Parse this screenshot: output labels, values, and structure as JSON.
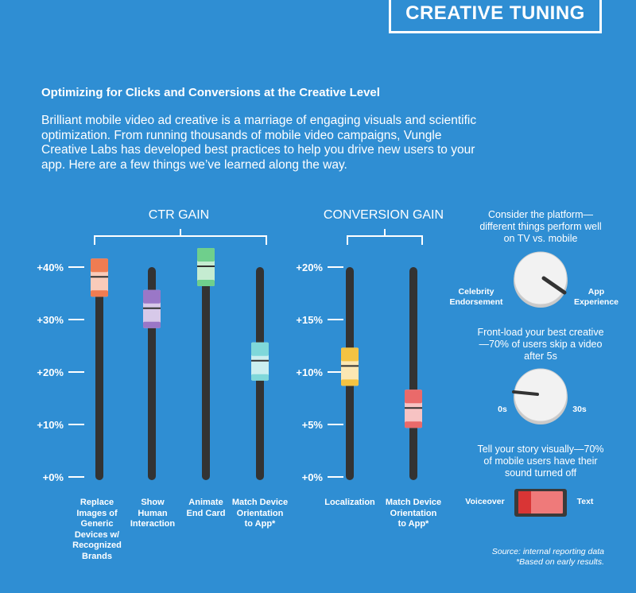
{
  "header": {
    "title": "CREATIVE TUNING"
  },
  "subtitle": "Optimizing for Clicks and Conversions at the Creative Level",
  "intro": "Brilliant mobile video ad creative is a marriage of engaging visuals and scientific optimization. From running thousands of mobile video campaigns, Vungle Creative Labs has developed best practices to help you drive new users to your app. Here are a few things we’ve learned along the way.",
  "chart_data": [
    {
      "type": "bar",
      "title": "CTR GAIN",
      "ylim": [
        0,
        40
      ],
      "tick_labels": [
        "+0%",
        "+10%",
        "+20%",
        "+30%",
        "+40%"
      ],
      "categories": [
        "Replace Images of Generic Devices w/ Recognized Brands",
        "Show Human Interaction",
        "Animate End Card",
        "Match Device Orientation to App*"
      ],
      "category_lines": [
        [
          "Replace",
          "Images of",
          "Generic",
          "Devices w/",
          "Recognized",
          "Brands"
        ],
        [
          "Show",
          "Human",
          "Interaction"
        ],
        [
          "Animate",
          "End Card"
        ],
        [
          "Match Device",
          "Orientation",
          "to App*"
        ]
      ],
      "values": [
        38,
        32,
        40,
        22
      ],
      "colors": [
        "#ef7c52",
        "#9a77c7",
        "#6fcf8c",
        "#7fd8da"
      ]
    },
    {
      "type": "bar",
      "title": "CONVERSION GAIN",
      "ylim": [
        0,
        20
      ],
      "tick_labels": [
        "+0%",
        "+5%",
        "+10%",
        "+15%",
        "+20%"
      ],
      "categories": [
        "Localization",
        "Match Device Orientation to App*"
      ],
      "category_lines": [
        [
          "Localization"
        ],
        [
          "Match Device",
          "Orientation",
          "to App*"
        ]
      ],
      "values": [
        10.5,
        6.5
      ],
      "colors": [
        "#f4c342",
        "#ea6a6a"
      ]
    }
  ],
  "tips": [
    {
      "text": "Consider the platform—different things perform well on TV vs. mobile",
      "left_label": "Celebrity Endorsement",
      "right_label": "App Experience"
    },
    {
      "text": "Front-load your best creative—70% of users skip a video after 5s",
      "left_label": "0s",
      "right_label": "30s"
    },
    {
      "text": "Tell your story visually—70% of mobile users have their sound turned off",
      "left_label": "Voiceover",
      "right_label": "Text"
    }
  ],
  "footer": {
    "source": "Source: internal reporting data",
    "note": "*Based on early results."
  }
}
